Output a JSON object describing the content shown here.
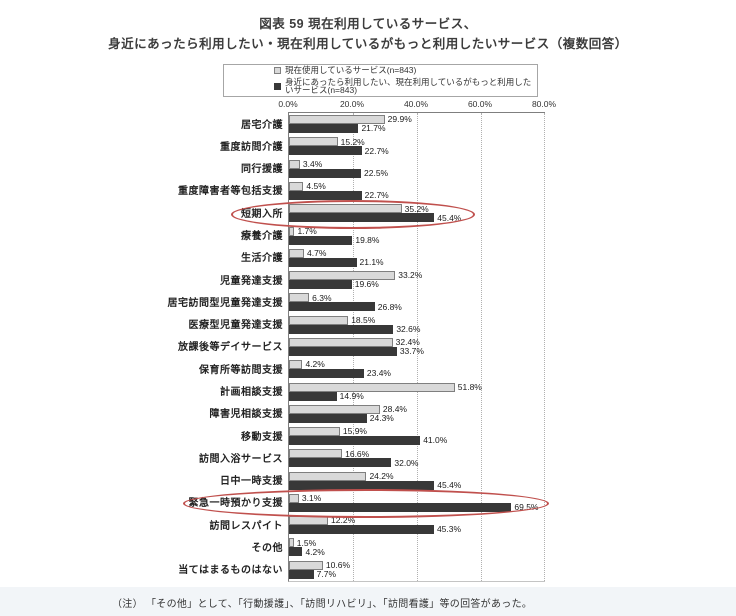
{
  "title": {
    "line1": "図表 59 現在利用しているサービス、",
    "line2": "身近にあったら利用したい・現在利用しているがもっと利用したいサービス（複数回答）"
  },
  "legend": {
    "items": [
      {
        "label": "現在使用しているサービス(n=843)",
        "swatch": "light"
      },
      {
        "label": "身近にあったら利用したい、現在利用しているがもっと利用したいサービス(n=843)",
        "swatch": "dark"
      }
    ]
  },
  "axis": {
    "ticks": [
      "0.0%",
      "20.0%",
      "40.0%",
      "60.0%",
      "80.0%"
    ]
  },
  "chart_data": {
    "type": "bar",
    "orientation": "horizontal",
    "title": "図表 59 現在利用しているサービス、身近にあったら利用したい・現在利用しているがもっと利用したいサービス（複数回答）",
    "categories": [
      "居宅介護",
      "重度訪問介護",
      "同行援護",
      "重度障害者等包括支援",
      "短期入所",
      "療養介護",
      "生活介護",
      "児童発達支援",
      "居宅訪問型児童発達支援",
      "医療型児童発達支援",
      "放課後等デイサービス",
      "保育所等訪問支援",
      "計画相談支援",
      "障害児相談支援",
      "移動支援",
      "訪問入浴サービス",
      "日中一時支援",
      "緊急一時預かり支援",
      "訪問レスパイト",
      "その他",
      "当てはまるものはない"
    ],
    "series": [
      {
        "name": "現在使用しているサービス(n=843)",
        "color": "#d9d9d9",
        "values": [
          29.9,
          15.2,
          3.4,
          4.5,
          35.2,
          1.7,
          4.7,
          33.2,
          6.3,
          18.5,
          32.4,
          4.2,
          51.8,
          28.4,
          15.9,
          16.6,
          24.2,
          3.1,
          12.2,
          1.5,
          10.6
        ]
      },
      {
        "name": "身近にあったら利用したい、現在利用しているがもっと利用したいサービス(n=843)",
        "color": "#383838",
        "values": [
          21.7,
          22.7,
          22.5,
          22.7,
          45.4,
          19.8,
          21.1,
          19.6,
          26.8,
          32.6,
          33.7,
          23.4,
          14.9,
          24.3,
          41.0,
          32.0,
          45.4,
          69.5,
          45.3,
          4.2,
          7.7
        ]
      }
    ],
    "xlim": [
      0,
      80
    ],
    "grid": "dotted-vertical",
    "legend_position": "top",
    "highlighted_categories": [
      "短期入所",
      "緊急一時預かり支援"
    ]
  },
  "note": "（注） 「その他」として、「行動援護」、「訪問リハビリ」、「訪問看護」等の回答があった。",
  "colors": {
    "light_bar": "#d9d9d9",
    "light_bar_border": "#7f7f7f",
    "dark_bar": "#383838",
    "highlight_ellipse": "#c0504d",
    "note_band": "#f2f5f8"
  }
}
